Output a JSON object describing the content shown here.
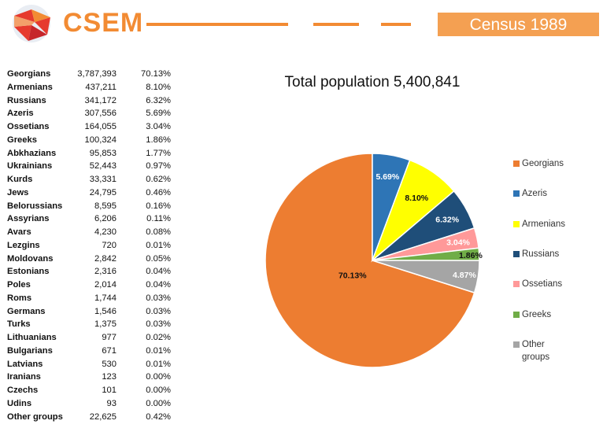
{
  "header": {
    "brand": "CSEM",
    "census_title": "Census 1989"
  },
  "table": [
    {
      "name": "Georgians",
      "count": "3,787,393",
      "pct": "70.13%"
    },
    {
      "name": "Armenians",
      "count": "437,211",
      "pct": "8.10%"
    },
    {
      "name": "Russians",
      "count": "341,172",
      "pct": "6.32%"
    },
    {
      "name": "Azeris",
      "count": "307,556",
      "pct": "5.69%"
    },
    {
      "name": "Ossetians",
      "count": "164,055",
      "pct": "3.04%"
    },
    {
      "name": "Greeks",
      "count": "100,324",
      "pct": "1.86%"
    },
    {
      "name": "Abkhazians",
      "count": "95,853",
      "pct": "1.77%"
    },
    {
      "name": "Ukrainians",
      "count": "52,443",
      "pct": "0.97%"
    },
    {
      "name": "Kurds",
      "count": "33,331",
      "pct": "0.62%"
    },
    {
      "name": "Jews",
      "count": "24,795",
      "pct": "0.46%"
    },
    {
      "name": "Belorussians",
      "count": "8,595",
      "pct": "0.16%"
    },
    {
      "name": "Assyrians",
      "count": "6,206",
      "pct": "0.11%"
    },
    {
      "name": "Avars",
      "count": "4,230",
      "pct": "0.08%"
    },
    {
      "name": "Lezgins",
      "count": "720",
      "pct": "0.01%"
    },
    {
      "name": "Moldovans",
      "count": "2,842",
      "pct": "0.05%"
    },
    {
      "name": "Estonians",
      "count": "2,316",
      "pct": "0.04%"
    },
    {
      "name": "Poles",
      "count": "2,014",
      "pct": "0.04%"
    },
    {
      "name": "Roms",
      "count": "1,744",
      "pct": "0.03%"
    },
    {
      "name": "Germans",
      "count": "1,546",
      "pct": "0.03%"
    },
    {
      "name": "Turks",
      "count": "1,375",
      "pct": "0.03%"
    },
    {
      "name": "Lithuanians",
      "count": "977",
      "pct": "0.02%"
    },
    {
      "name": "Bulgarians",
      "count": "671",
      "pct": "0.01%"
    },
    {
      "name": "Latvians",
      "count": "530",
      "pct": "0.01%"
    },
    {
      "name": "Iranians",
      "count": "123",
      "pct": "0.00%"
    },
    {
      "name": "Czechs",
      "count": "101",
      "pct": "0.00%"
    },
    {
      "name": "Udins",
      "count": "93",
      "pct": "0.00%"
    },
    {
      "name": "Other groups",
      "count": "22,625",
      "pct": "0.42%"
    }
  ],
  "chart_data": {
    "type": "pie",
    "title": "Total population 5,400,841",
    "legend_position": "right",
    "slices": [
      {
        "name": "Georgians",
        "value": 70.13,
        "label": "70.13%",
        "color": "#ed7d31"
      },
      {
        "name": "Azeris",
        "value": 5.69,
        "label": "5.69%",
        "color": "#2e75b6"
      },
      {
        "name": "Armenians",
        "value": 8.1,
        "label": "8.10%",
        "color": "#ffff00"
      },
      {
        "name": "Russians",
        "value": 6.32,
        "label": "6.32%",
        "color": "#1f4e79"
      },
      {
        "name": "Ossetians",
        "value": 3.04,
        "label": "3.04%",
        "color": "#ff9999"
      },
      {
        "name": "Greeks",
        "value": 1.86,
        "label": "1.86%",
        "color": "#70ad47"
      },
      {
        "name": "Other groups",
        "value": 4.87,
        "label": "4.87%",
        "color": "#a5a5a5"
      }
    ]
  }
}
